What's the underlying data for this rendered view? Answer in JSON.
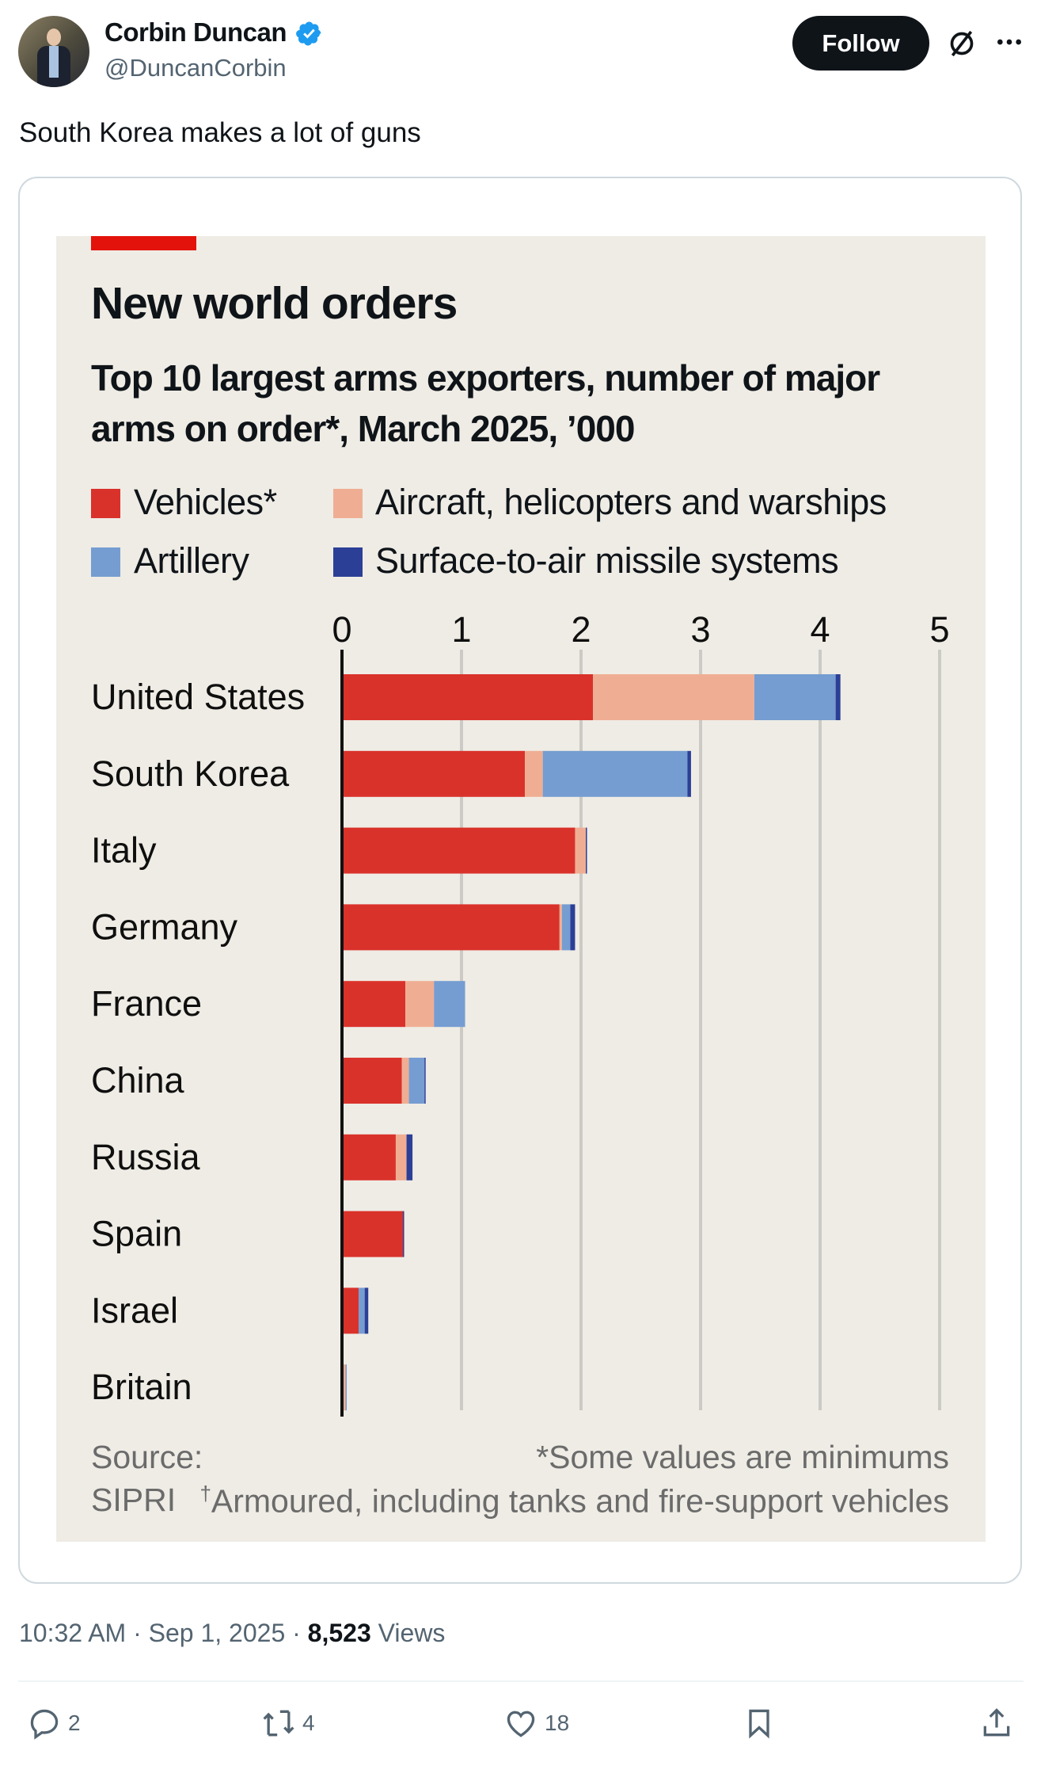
{
  "author": {
    "name": "Corbin Duncan",
    "handle": "@DuncanCorbin",
    "verified": true
  },
  "follow_label": "Follow",
  "tweet_text": "South Korea makes a lot of guns",
  "meta": {
    "time": "10:32 AM",
    "date": "Sep 1, 2025",
    "views": "8,523",
    "views_label": "Views",
    "sep": "·"
  },
  "actions": {
    "replies": "2",
    "reposts": "4",
    "likes": "18"
  },
  "icons": [
    "avatar",
    "verified-badge-icon",
    "grok-icon",
    "more-icon",
    "reply-icon",
    "repost-icon",
    "like-icon",
    "bookmark-icon",
    "share-icon"
  ],
  "colors": {
    "vehicles": "#d9322b",
    "aircraft": "#efae93",
    "artillery": "#759dd1",
    "sam": "#2c3f96",
    "accent": "#e3120b",
    "chart_bg": "#efece5"
  },
  "chart_data": {
    "type": "bar",
    "orientation": "horizontal",
    "stacked": true,
    "title": "New world orders",
    "subtitle_line1": "Top 10 largest arms exporters, number of major",
    "subtitle_line2": "arms on order*, March 2025, ’000",
    "categories": [
      "United States",
      "South Korea",
      "Italy",
      "Germany",
      "France",
      "China",
      "Russia",
      "Spain",
      "Israel",
      "Britain"
    ],
    "series": [
      {
        "name": "Vehicles*",
        "color": "#d9322b",
        "values": [
          2.1,
          1.53,
          1.95,
          1.82,
          0.53,
          0.5,
          0.45,
          0.51,
          0.14,
          0.0
        ]
      },
      {
        "name": "Aircraft, helicopters and warships",
        "color": "#efae93",
        "values": [
          1.35,
          0.15,
          0.09,
          0.02,
          0.24,
          0.06,
          0.09,
          0.0,
          0.0,
          0.03
        ]
      },
      {
        "name": "Artillery",
        "color": "#759dd1",
        "values": [
          0.68,
          1.21,
          0.0,
          0.07,
          0.26,
          0.13,
          0.0,
          0.0,
          0.05,
          0.01
        ]
      },
      {
        "name": "Surface-to-air missile systems",
        "color": "#2c3f96",
        "values": [
          0.04,
          0.03,
          0.01,
          0.04,
          0.0,
          0.01,
          0.05,
          0.01,
          0.03,
          0.0
        ]
      }
    ],
    "xlim": [
      0,
      5
    ],
    "xticks": [
      "0",
      "1",
      "2",
      "3",
      "4",
      "5"
    ],
    "grid": true,
    "legend": "top",
    "source_label": "Source:",
    "source": "SIPRI",
    "note1": "*Some values are minimums",
    "note2_mark": "†",
    "note2": "Armoured, including tanks and fire-support vehicles"
  }
}
